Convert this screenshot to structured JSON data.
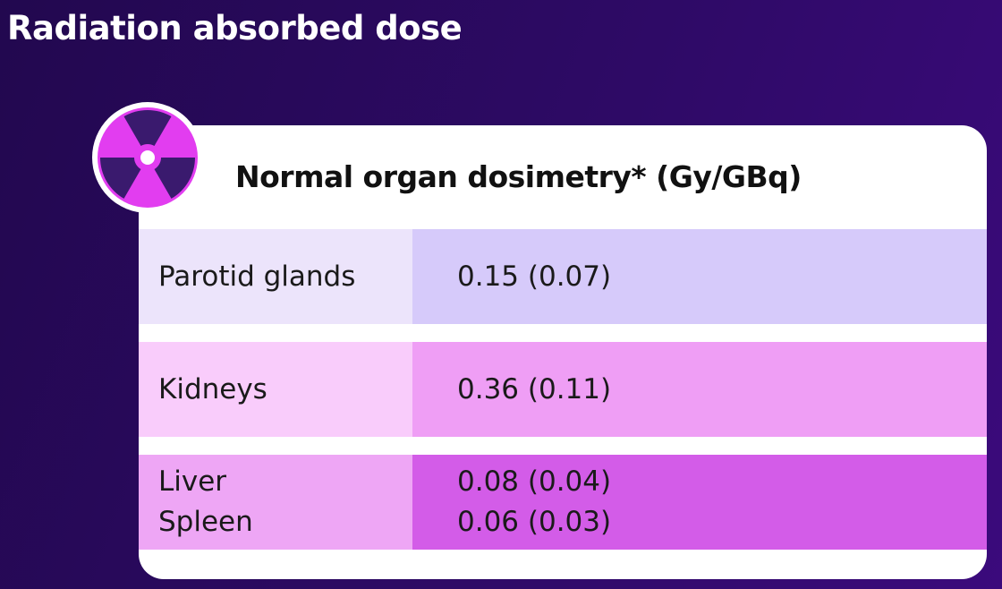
{
  "title": "Radiation absorbed dose",
  "card": {
    "heading": "Normal organ dosimetry* (Gy/GBq)"
  },
  "table": {
    "rows": [
      {
        "organs": [
          "Parotid glands"
        ],
        "values": [
          "0.15 (0.07)"
        ]
      },
      {
        "organs": [
          "Kidneys"
        ],
        "values": [
          "0.36 (0.11)"
        ]
      },
      {
        "organs": [
          "Liver",
          "Spleen"
        ],
        "values": [
          "0.08 (0.04)",
          "0.06 (0.03)"
        ]
      }
    ]
  }
}
